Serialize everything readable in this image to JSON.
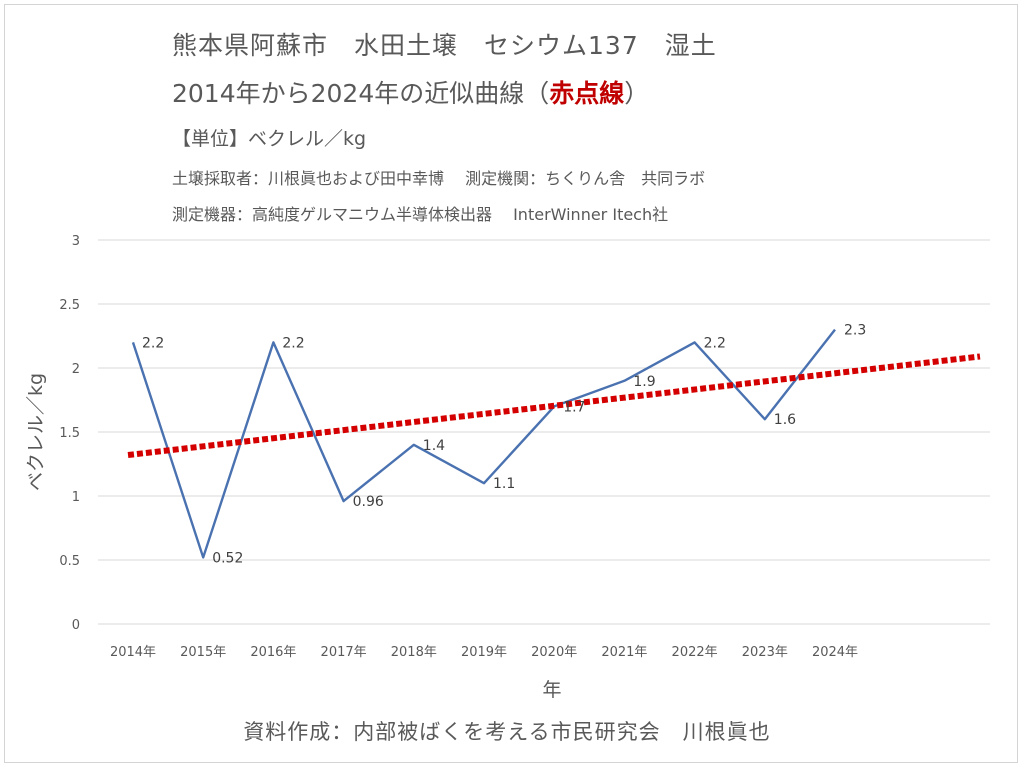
{
  "header": {
    "title_line1": "熊本県阿蘇市　水田土壌　セシウム137　湿土",
    "title_line2_prefix": "2014年から2024年の近似曲線（",
    "title_line2_accent": "赤点線",
    "title_line2_suffix": "）",
    "unit": "【単位】ベクレル／kg",
    "info_line1": "土壌採取者：川根眞也および田中幸博　 測定機関：ちくりん舎　共同ラボ",
    "info_line2": "測定機器：高純度ゲルマニウム半導体検出器　 InterWinner Itech社"
  },
  "footer": "資料作成：内部被ばくを考える市民研究会　川根眞也",
  "colors": {
    "series": "#4a72b0",
    "trend": "#d40000",
    "grid": "#d9d9d9",
    "text": "#595959"
  },
  "chart_data": {
    "type": "line",
    "categories": [
      "2014年",
      "2015年",
      "2016年",
      "2017年",
      "2018年",
      "2019年",
      "2020年",
      "2021年",
      "2022年",
      "2023年",
      "2024年"
    ],
    "series": [
      {
        "values": [
          2.2,
          0.52,
          2.2,
          0.96,
          1.4,
          1.1,
          1.7,
          1.9,
          2.2,
          1.6,
          2.3
        ]
      }
    ],
    "data_labels": [
      "2.2",
      "0.52",
      "2.2",
      "0.96",
      "1.4",
      "1.1",
      "1.7",
      "1.9",
      "2.2",
      "1.6",
      "2.3"
    ],
    "trendline": {
      "style": "dotted",
      "start": 1.32,
      "end": 2.09
    },
    "xlabel": "年",
    "ylabel": "ベクレル／kg",
    "ylim": [
      0,
      3
    ],
    "yticks": [
      "0",
      "0.5",
      "1",
      "1.5",
      "2",
      "2.5",
      "3"
    ],
    "grid": true,
    "legend": "none"
  }
}
